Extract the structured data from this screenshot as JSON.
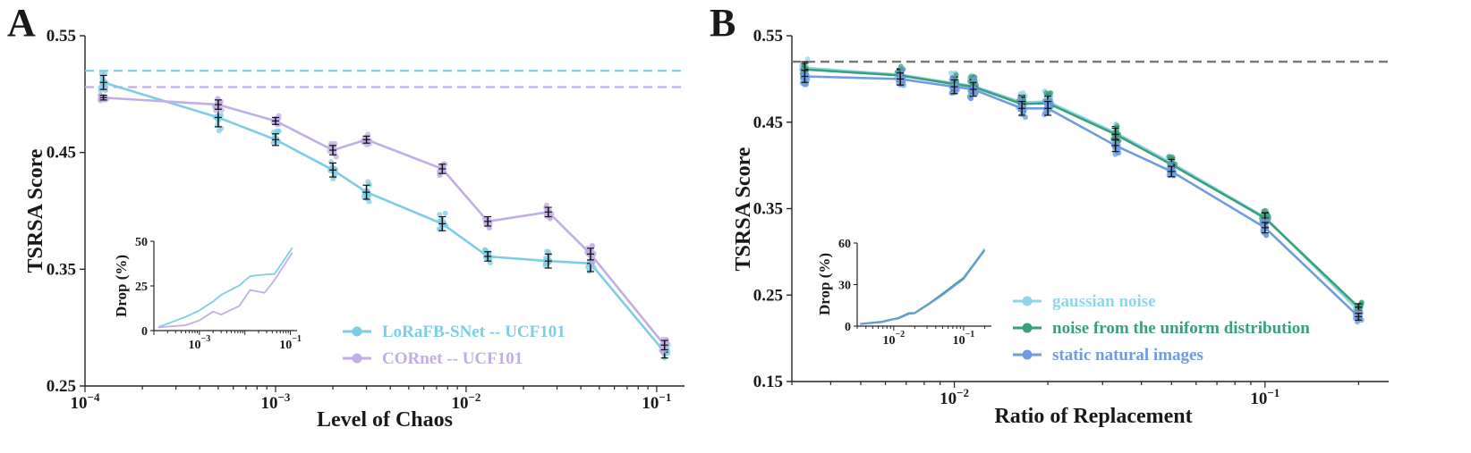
{
  "chart_data": [
    {
      "type": "line",
      "panel_letter": "A",
      "xlabel": "Level of Chaos",
      "ylabel": "TSRSA Score",
      "x_scale": "log",
      "xlim": [
        0.0001,
        0.14
      ],
      "ylim": [
        0.25,
        0.55
      ],
      "y_ticks": [
        {
          "value": 0.25,
          "label": "0.25"
        },
        {
          "value": 0.35,
          "label": "0.35"
        },
        {
          "value": 0.45,
          "label": "0.45"
        },
        {
          "value": 0.55,
          "label": "0.55"
        }
      ],
      "x_ticks": [
        {
          "value": 0.0001,
          "base": "10",
          "exp": "−4"
        },
        {
          "value": 0.001,
          "base": "10",
          "exp": "−3"
        },
        {
          "value": 0.01,
          "base": "10",
          "exp": "−2"
        },
        {
          "value": 0.1,
          "base": "10",
          "exp": "−1"
        }
      ],
      "grid": false,
      "legend_position": "bottom-right",
      "series": [
        {
          "name": "LoRaFB-SNet  --  UCF101",
          "color": "#7ecde6",
          "baseline": 0.52,
          "x": [
            0.000125,
            0.0005,
            0.001,
            0.002,
            0.003,
            0.0075,
            0.013,
            0.027,
            0.045,
            0.11
          ],
          "y": [
            0.51,
            0.48,
            0.461,
            0.435,
            0.416,
            0.389,
            0.361,
            0.357,
            0.355,
            0.279
          ],
          "err": [
            0.006,
            0.008,
            0.005,
            0.006,
            0.006,
            0.006,
            0.004,
            0.006,
            0.007,
            0.005
          ]
        },
        {
          "name": "CORnet  --  UCF101",
          "color": "#c2aee6",
          "baseline": 0.506,
          "x": [
            0.000125,
            0.0005,
            0.001,
            0.002,
            0.003,
            0.0075,
            0.013,
            0.027,
            0.045,
            0.11
          ],
          "y": [
            0.497,
            0.491,
            0.477,
            0.452,
            0.461,
            0.436,
            0.391,
            0.399,
            0.363,
            0.285
          ],
          "err": [
            0.002,
            0.004,
            0.003,
            0.004,
            0.003,
            0.004,
            0.004,
            0.004,
            0.005,
            0.004
          ]
        }
      ],
      "inset": {
        "ylabel": "Drop (%)",
        "y_ticks": [
          {
            "value": 0,
            "label": "0"
          },
          {
            "value": 25,
            "label": "25"
          },
          {
            "value": 50,
            "label": "50"
          }
        ],
        "x_ticks": [
          {
            "value": 0.001,
            "base": "10",
            "exp": "−3"
          },
          {
            "value": 0.1,
            "base": "10",
            "exp": "−1"
          }
        ],
        "ylim": [
          0,
          50
        ],
        "xlim": [
          0.0001,
          0.14
        ],
        "series": [
          {
            "color": "#7ecde6",
            "x": [
              0.000125,
              0.0005,
              0.001,
              0.002,
              0.003,
              0.0075,
              0.013,
              0.027,
              0.045,
              0.11
            ],
            "y": [
              1.9,
              7.7,
              11.3,
              16.3,
              20,
              25.2,
              30.5,
              31.3,
              31.7,
              46.3
            ]
          },
          {
            "color": "#c2aee6",
            "x": [
              0.000125,
              0.0005,
              0.001,
              0.002,
              0.003,
              0.0075,
              0.013,
              0.027,
              0.045,
              0.11
            ],
            "y": [
              1.8,
              3,
              5.7,
              10.7,
              8.9,
              13.8,
              22.7,
              21.1,
              28.3,
              43.7
            ]
          }
        ]
      }
    },
    {
      "type": "line",
      "panel_letter": "B",
      "xlabel": "Ratio of Replacement",
      "ylabel": "TSRSA Score",
      "x_scale": "log",
      "xlim": [
        0.003,
        0.25
      ],
      "ylim": [
        0.15,
        0.55
      ],
      "y_ticks": [
        {
          "value": 0.15,
          "label": "0.15"
        },
        {
          "value": 0.25,
          "label": "0.25"
        },
        {
          "value": 0.35,
          "label": "0.35"
        },
        {
          "value": 0.45,
          "label": "0.45"
        },
        {
          "value": 0.55,
          "label": "0.55"
        }
      ],
      "x_ticks": [
        {
          "value": 0.01,
          "base": "10",
          "exp": "−2"
        },
        {
          "value": 0.1,
          "base": "10",
          "exp": "−1"
        }
      ],
      "grid": false,
      "legend_position": "bottom-right",
      "baseline": {
        "value": 0.52,
        "color": "#777777"
      },
      "series": [
        {
          "name": "gaussian noise",
          "color": "#8fd6e8",
          "x": [
            0.0033,
            0.0067,
            0.01,
            0.0115,
            0.0165,
            0.02,
            0.033,
            0.05,
            0.1,
            0.2
          ],
          "y": [
            0.513,
            0.505,
            0.495,
            0.492,
            0.473,
            0.474,
            0.438,
            0.403,
            0.34,
            0.232
          ],
          "err": [
            0.007,
            0.007,
            0.008,
            0.008,
            0.008,
            0.008,
            0.007,
            0.006,
            0.006,
            0.004
          ]
        },
        {
          "name": "noise from the uniform distribution",
          "color": "#3aa07b",
          "x": [
            0.0033,
            0.0067,
            0.01,
            0.0115,
            0.0165,
            0.02,
            0.033,
            0.05,
            0.1,
            0.2
          ],
          "y": [
            0.511,
            0.504,
            0.494,
            0.491,
            0.471,
            0.472,
            0.436,
            0.401,
            0.339,
            0.236
          ],
          "err": [
            0.007,
            0.007,
            0.008,
            0.008,
            0.008,
            0.008,
            0.007,
            0.006,
            0.006,
            0.004
          ]
        },
        {
          "name": "static natural images",
          "color": "#6f9be3",
          "x": [
            0.0033,
            0.0067,
            0.01,
            0.0115,
            0.0165,
            0.02,
            0.033,
            0.05,
            0.1,
            0.2
          ],
          "y": [
            0.503,
            0.5,
            0.491,
            0.488,
            0.466,
            0.466,
            0.423,
            0.393,
            0.328,
            0.225
          ],
          "err": [
            0.007,
            0.007,
            0.008,
            0.008,
            0.008,
            0.008,
            0.007,
            0.006,
            0.006,
            0.004
          ]
        }
      ],
      "inset": {
        "ylabel": "Drop (%)",
        "y_ticks": [
          {
            "value": 0,
            "label": "0"
          },
          {
            "value": 30,
            "label": "30"
          },
          {
            "value": 60,
            "label": "60"
          }
        ],
        "x_ticks": [
          {
            "value": 0.01,
            "base": "10",
            "exp": "−2"
          },
          {
            "value": 0.1,
            "base": "10",
            "exp": "−1"
          }
        ],
        "ylim": [
          0,
          60
        ],
        "xlim": [
          0.003,
          0.25
        ],
        "series": [
          {
            "color": "#8fd6e8",
            "x": [
              0.0033,
              0.0067,
              0.01,
              0.0115,
              0.0165,
              0.02,
              0.033,
              0.05,
              0.1,
              0.2
            ],
            "y": [
              1.5,
              3,
              5,
              5.5,
              9,
              9.5,
              16.5,
              23,
              34.5,
              56
            ]
          },
          {
            "color": "#3aa07b",
            "x": [
              0.0033,
              0.0067,
              0.01,
              0.0115,
              0.0165,
              0.02,
              0.033,
              0.05,
              0.1,
              0.2
            ],
            "y": [
              1.7,
              3.2,
              5.2,
              5.8,
              9.4,
              9.6,
              16.8,
              23.5,
              35,
              55
            ]
          },
          {
            "color": "#6f9be3",
            "x": [
              0.0033,
              0.0067,
              0.01,
              0.0115,
              0.0165,
              0.02,
              0.033,
              0.05,
              0.1,
              0.2
            ],
            "y": [
              1.4,
              2.8,
              4.9,
              5.3,
              8.8,
              9.2,
              16.2,
              22.5,
              34,
              54.5
            ]
          }
        ]
      }
    }
  ]
}
